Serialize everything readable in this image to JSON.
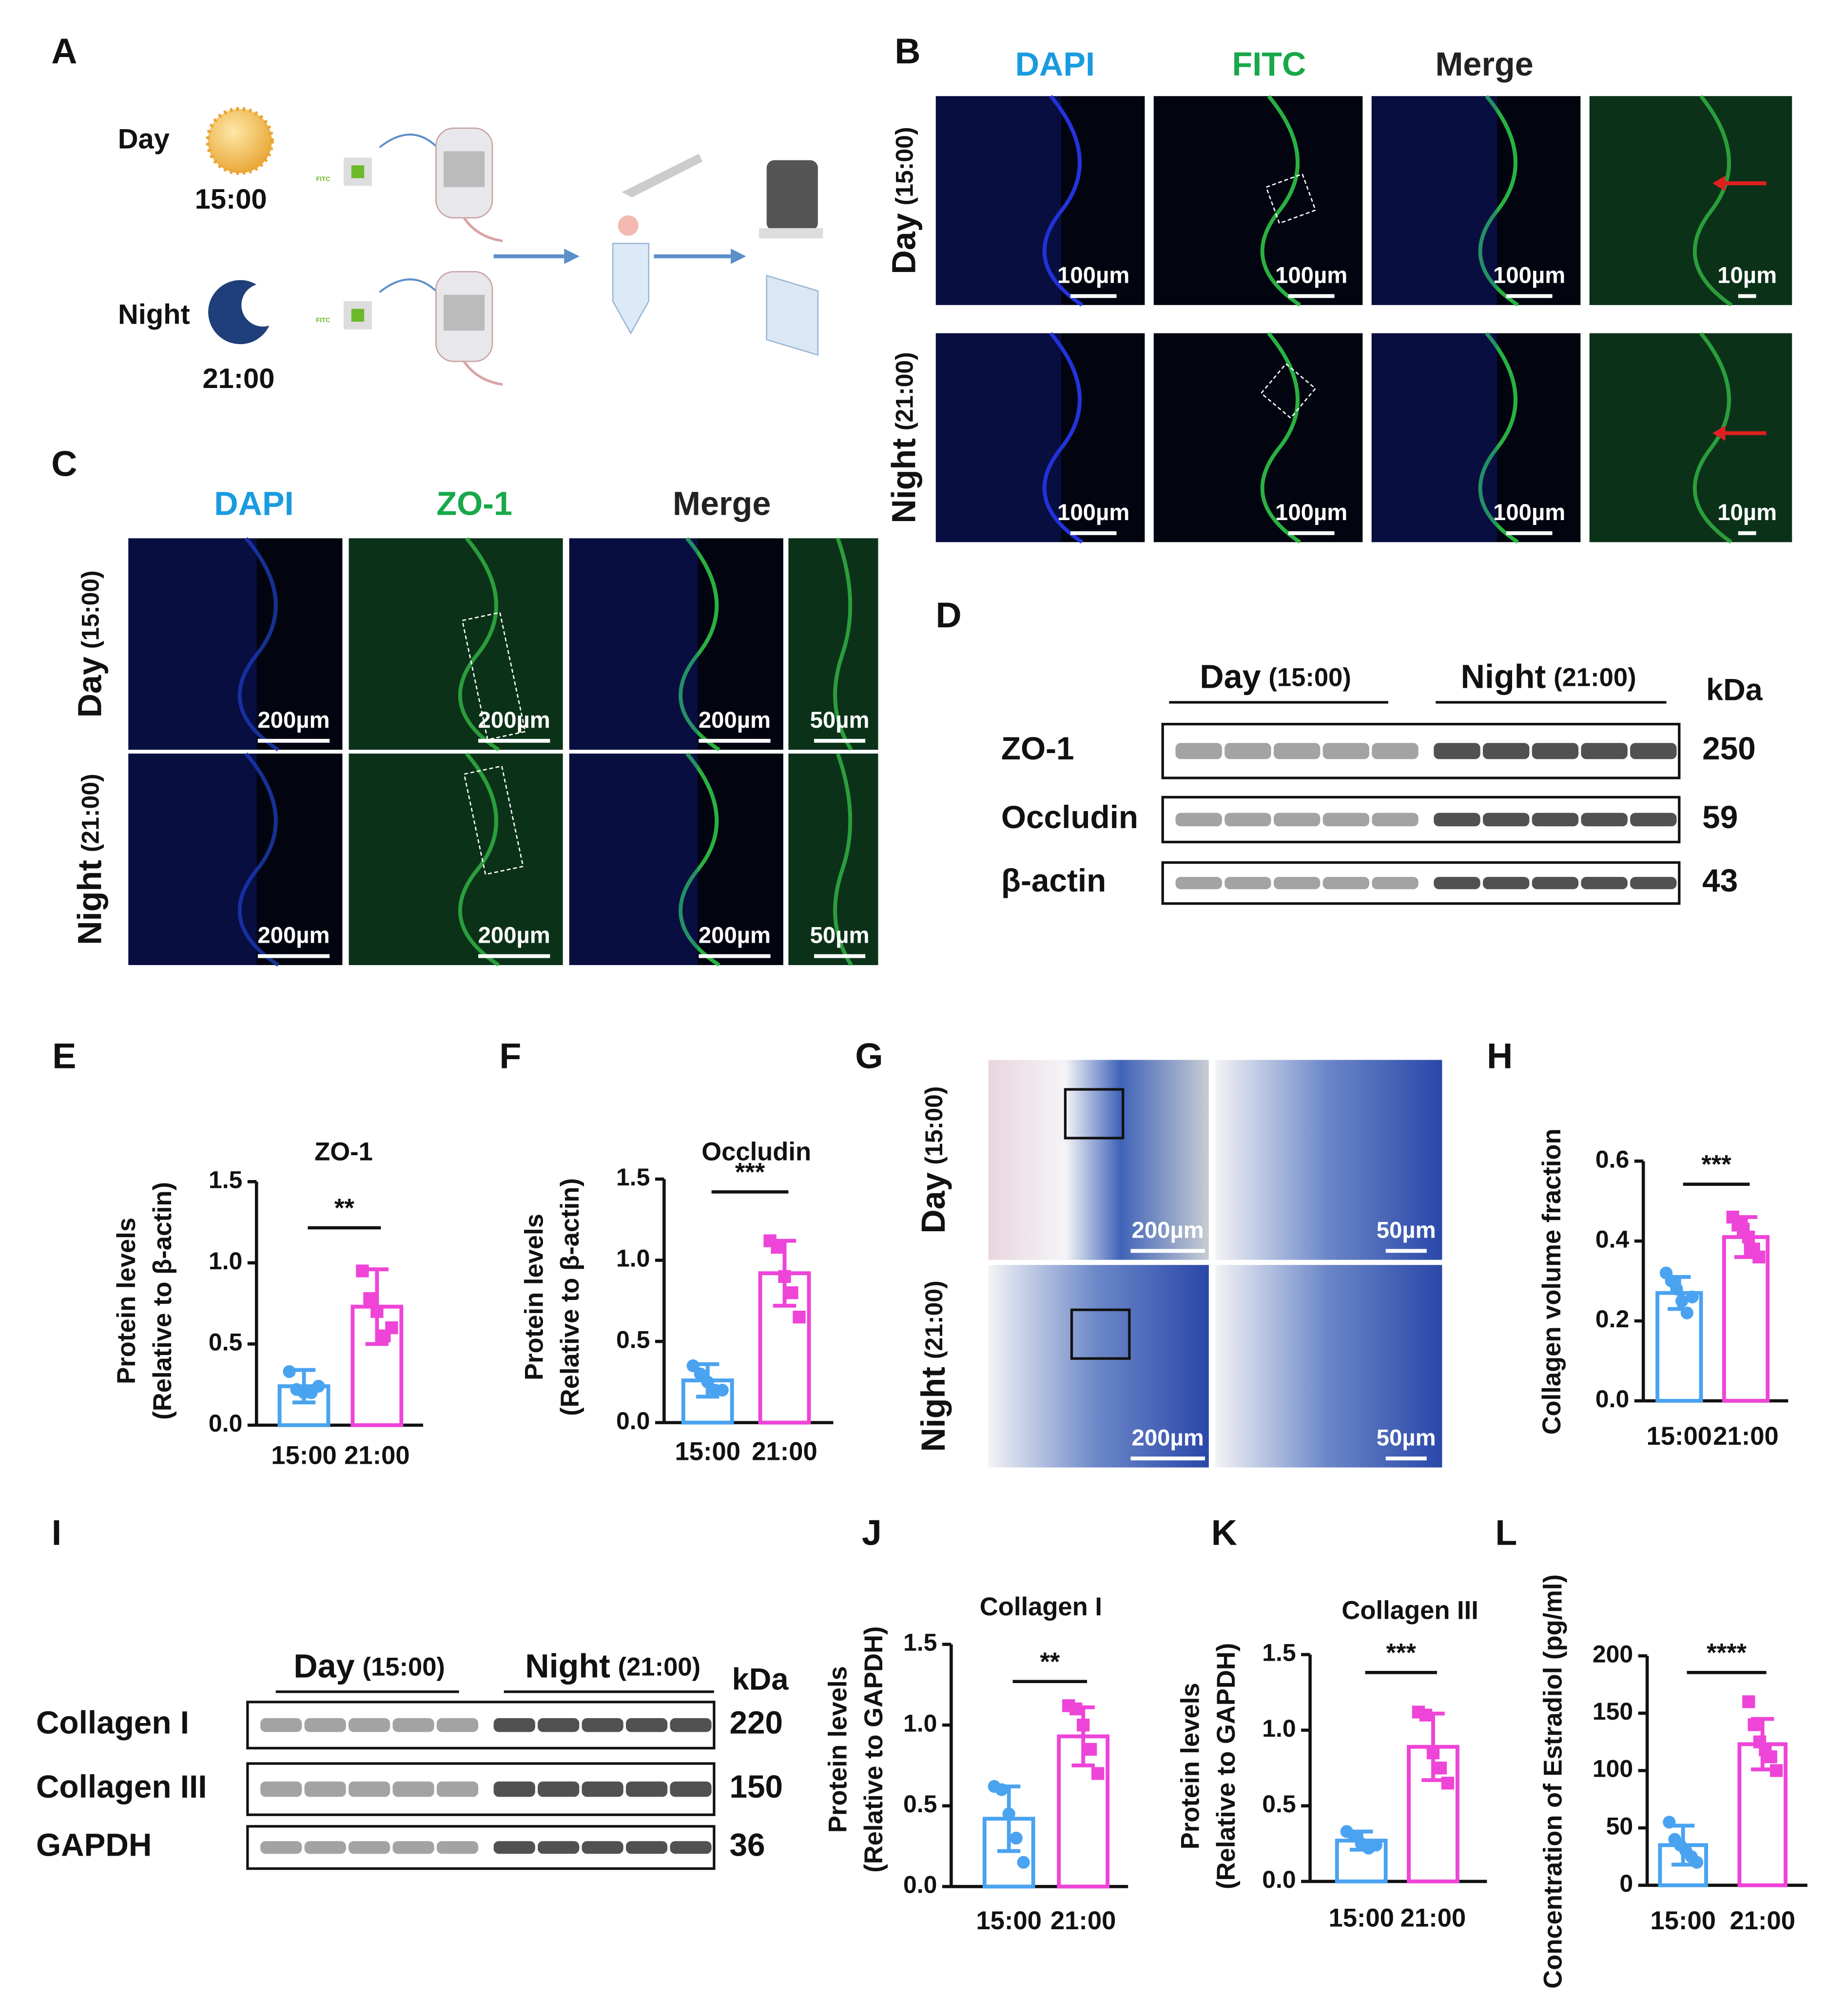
{
  "panel_labels": [
    "A",
    "B",
    "C",
    "D",
    "E",
    "F",
    "G",
    "H",
    "I",
    "J",
    "K",
    "L"
  ],
  "panel_a": {
    "day": "Day",
    "day_time": "15:00",
    "night": "Night",
    "night_time": "21:00",
    "reagent": "FITC"
  },
  "panel_b": {
    "columns": [
      "DAPI",
      "FITC",
      "Merge"
    ],
    "rows": [
      {
        "name": "Day",
        "time": "(15:00)"
      },
      {
        "name": "Night",
        "time": "(21:00)"
      }
    ],
    "scale_bars": [
      [
        "100µm",
        "100µm",
        "100µm",
        "10µm"
      ],
      [
        "100µm",
        "100µm",
        "100µm",
        "10µm"
      ]
    ]
  },
  "panel_c": {
    "columns": [
      "DAPI",
      "ZO-1",
      "Merge"
    ],
    "rows": [
      {
        "name": "Day",
        "time": "(15:00)"
      },
      {
        "name": "Night",
        "time": "(21:00)"
      }
    ],
    "scale_bars": [
      [
        "200µm",
        "200µm",
        "200µm",
        "50µm"
      ],
      [
        "200µm",
        "200µm",
        "200µm",
        "50µm"
      ]
    ]
  },
  "panel_d": {
    "groups": [
      {
        "name": "Day",
        "time": "(15:00)"
      },
      {
        "name": "Night",
        "time": "(21:00)"
      }
    ],
    "unit": "kDa",
    "rows": [
      {
        "protein": "ZO-1",
        "kda": 250
      },
      {
        "protein": "Occludin",
        "kda": 59
      },
      {
        "protein": "β-actin",
        "kda": 43
      }
    ]
  },
  "panel_g": {
    "rows": [
      {
        "name": "Day",
        "time": "(15:00)"
      },
      {
        "name": "Night",
        "time": "(21:00)"
      }
    ],
    "scale_bars": [
      [
        "200µm",
        "50µm"
      ],
      [
        "200µm",
        "50µm"
      ]
    ]
  },
  "panel_i": {
    "groups": [
      {
        "name": "Day",
        "time": "(15:00)"
      },
      {
        "name": "Night",
        "time": "(21:00)"
      }
    ],
    "unit": "kDa",
    "rows": [
      {
        "protein": "Collagen I",
        "kda": 220
      },
      {
        "protein": "Collagen III",
        "kda": 150
      },
      {
        "protein": "GAPDH",
        "kda": 36
      }
    ]
  },
  "chart_data": [
    {
      "type": "bar",
      "title": "ZO-1",
      "ylabel": [
        "Protein levels",
        "(Relative to β-actin)"
      ],
      "categories": [
        "15:00",
        "21:00"
      ],
      "colors": [
        "#4aa3f0",
        "#ee44d8"
      ],
      "values": [
        0.24,
        0.73
      ],
      "errors": [
        0.1,
        0.23
      ],
      "points": [
        [
          0.33,
          0.22,
          0.2,
          0.2,
          0.24
        ],
        [
          0.95,
          0.78,
          0.7,
          0.55,
          0.6
        ]
      ],
      "significance": "**",
      "ylim": [
        0,
        1.5
      ],
      "yticks": [
        {
          "value": 0,
          "label": "0.0"
        },
        0.5,
        {
          "value": 1,
          "label": "1.0"
        },
        1.5
      ]
    },
    {
      "type": "bar",
      "title": "Occludin",
      "ylabel": [
        "Protein levels",
        "(Relative to β-actin)"
      ],
      "categories": [
        "15:00",
        "21:00"
      ],
      "colors": [
        "#4aa3f0",
        "#ee44d8"
      ],
      "values": [
        0.26,
        0.92
      ],
      "errors": [
        0.1,
        0.2
      ],
      "points": [
        [
          0.35,
          0.3,
          0.25,
          0.2,
          0.2
        ],
        [
          1.12,
          1.08,
          0.9,
          0.8,
          0.65
        ]
      ],
      "significance": "***",
      "ylim": [
        0,
        1.5
      ],
      "yticks": [
        {
          "value": 0,
          "label": "0.0"
        },
        0.5,
        {
          "value": 1,
          "label": "1.0"
        },
        1.5
      ]
    },
    {
      "type": "bar",
      "ylabel": [
        "Collagen volume fraction"
      ],
      "categories": [
        "15:00",
        "21:00"
      ],
      "colors": [
        "#4aa3f0",
        "#ee44d8"
      ],
      "values": [
        0.27,
        0.41
      ],
      "errors": [
        0.04,
        0.05
      ],
      "points": [
        [
          0.32,
          0.3,
          0.28,
          0.25,
          0.22,
          0.26
        ],
        [
          0.46,
          0.44,
          0.43,
          0.41,
          0.38,
          0.36
        ]
      ],
      "significance": "***",
      "ylim": [
        0,
        0.6
      ],
      "yticks": [
        {
          "value": 0,
          "label": "0.0"
        },
        0.2,
        0.4,
        0.6
      ]
    },
    {
      "type": "bar",
      "title": "Collagen I",
      "ylabel": [
        "Protein levels",
        "(Relative to GAPDH)"
      ],
      "categories": [
        "15:00",
        "21:00"
      ],
      "colors": [
        "#4aa3f0",
        "#ee44d8"
      ],
      "values": [
        0.42,
        0.93
      ],
      "errors": [
        0.2,
        0.18
      ],
      "points": [
        [
          0.62,
          0.6,
          0.45,
          0.3,
          0.15
        ],
        [
          1.12,
          1.1,
          1.0,
          0.85,
          0.7
        ]
      ],
      "significance": "**",
      "ylim": [
        0,
        1.5
      ],
      "yticks": [
        {
          "value": 0,
          "label": "0.0"
        },
        0.5,
        {
          "value": 1,
          "label": "1.0"
        },
        1.5
      ]
    },
    {
      "type": "bar",
      "title": "Collagen III",
      "ylabel": [
        "Protein levels",
        "(Relative to GAPDH)"
      ],
      "categories": [
        "15:00",
        "21:00"
      ],
      "colors": [
        "#4aa3f0",
        "#ee44d8"
      ],
      "values": [
        0.27,
        0.89
      ],
      "errors": [
        0.06,
        0.22
      ],
      "points": [
        [
          0.33,
          0.3,
          0.25,
          0.22,
          0.24
        ],
        [
          1.12,
          1.1,
          0.85,
          0.75,
          0.65
        ]
      ],
      "significance": "***",
      "ylim": [
        0,
        1.5
      ],
      "yticks": [
        {
          "value": 0,
          "label": "0.0"
        },
        0.5,
        {
          "value": 1,
          "label": "1.0"
        },
        1.5
      ]
    },
    {
      "type": "bar",
      "ylabel": [
        "Concentration of Estradiol (pg/ml)"
      ],
      "categories": [
        "15:00",
        "21:00"
      ],
      "colors": [
        "#4aa3f0",
        "#ee44d8"
      ],
      "values": [
        35,
        123
      ],
      "errors": [
        17,
        22
      ],
      "points": [
        [
          55,
          40,
          35,
          30,
          25,
          20
        ],
        [
          160,
          140,
          125,
          118,
          112,
          100
        ]
      ],
      "significance": "****",
      "ylim": [
        0,
        200
      ],
      "yticks": [
        0,
        50,
        100,
        150,
        200
      ]
    }
  ]
}
